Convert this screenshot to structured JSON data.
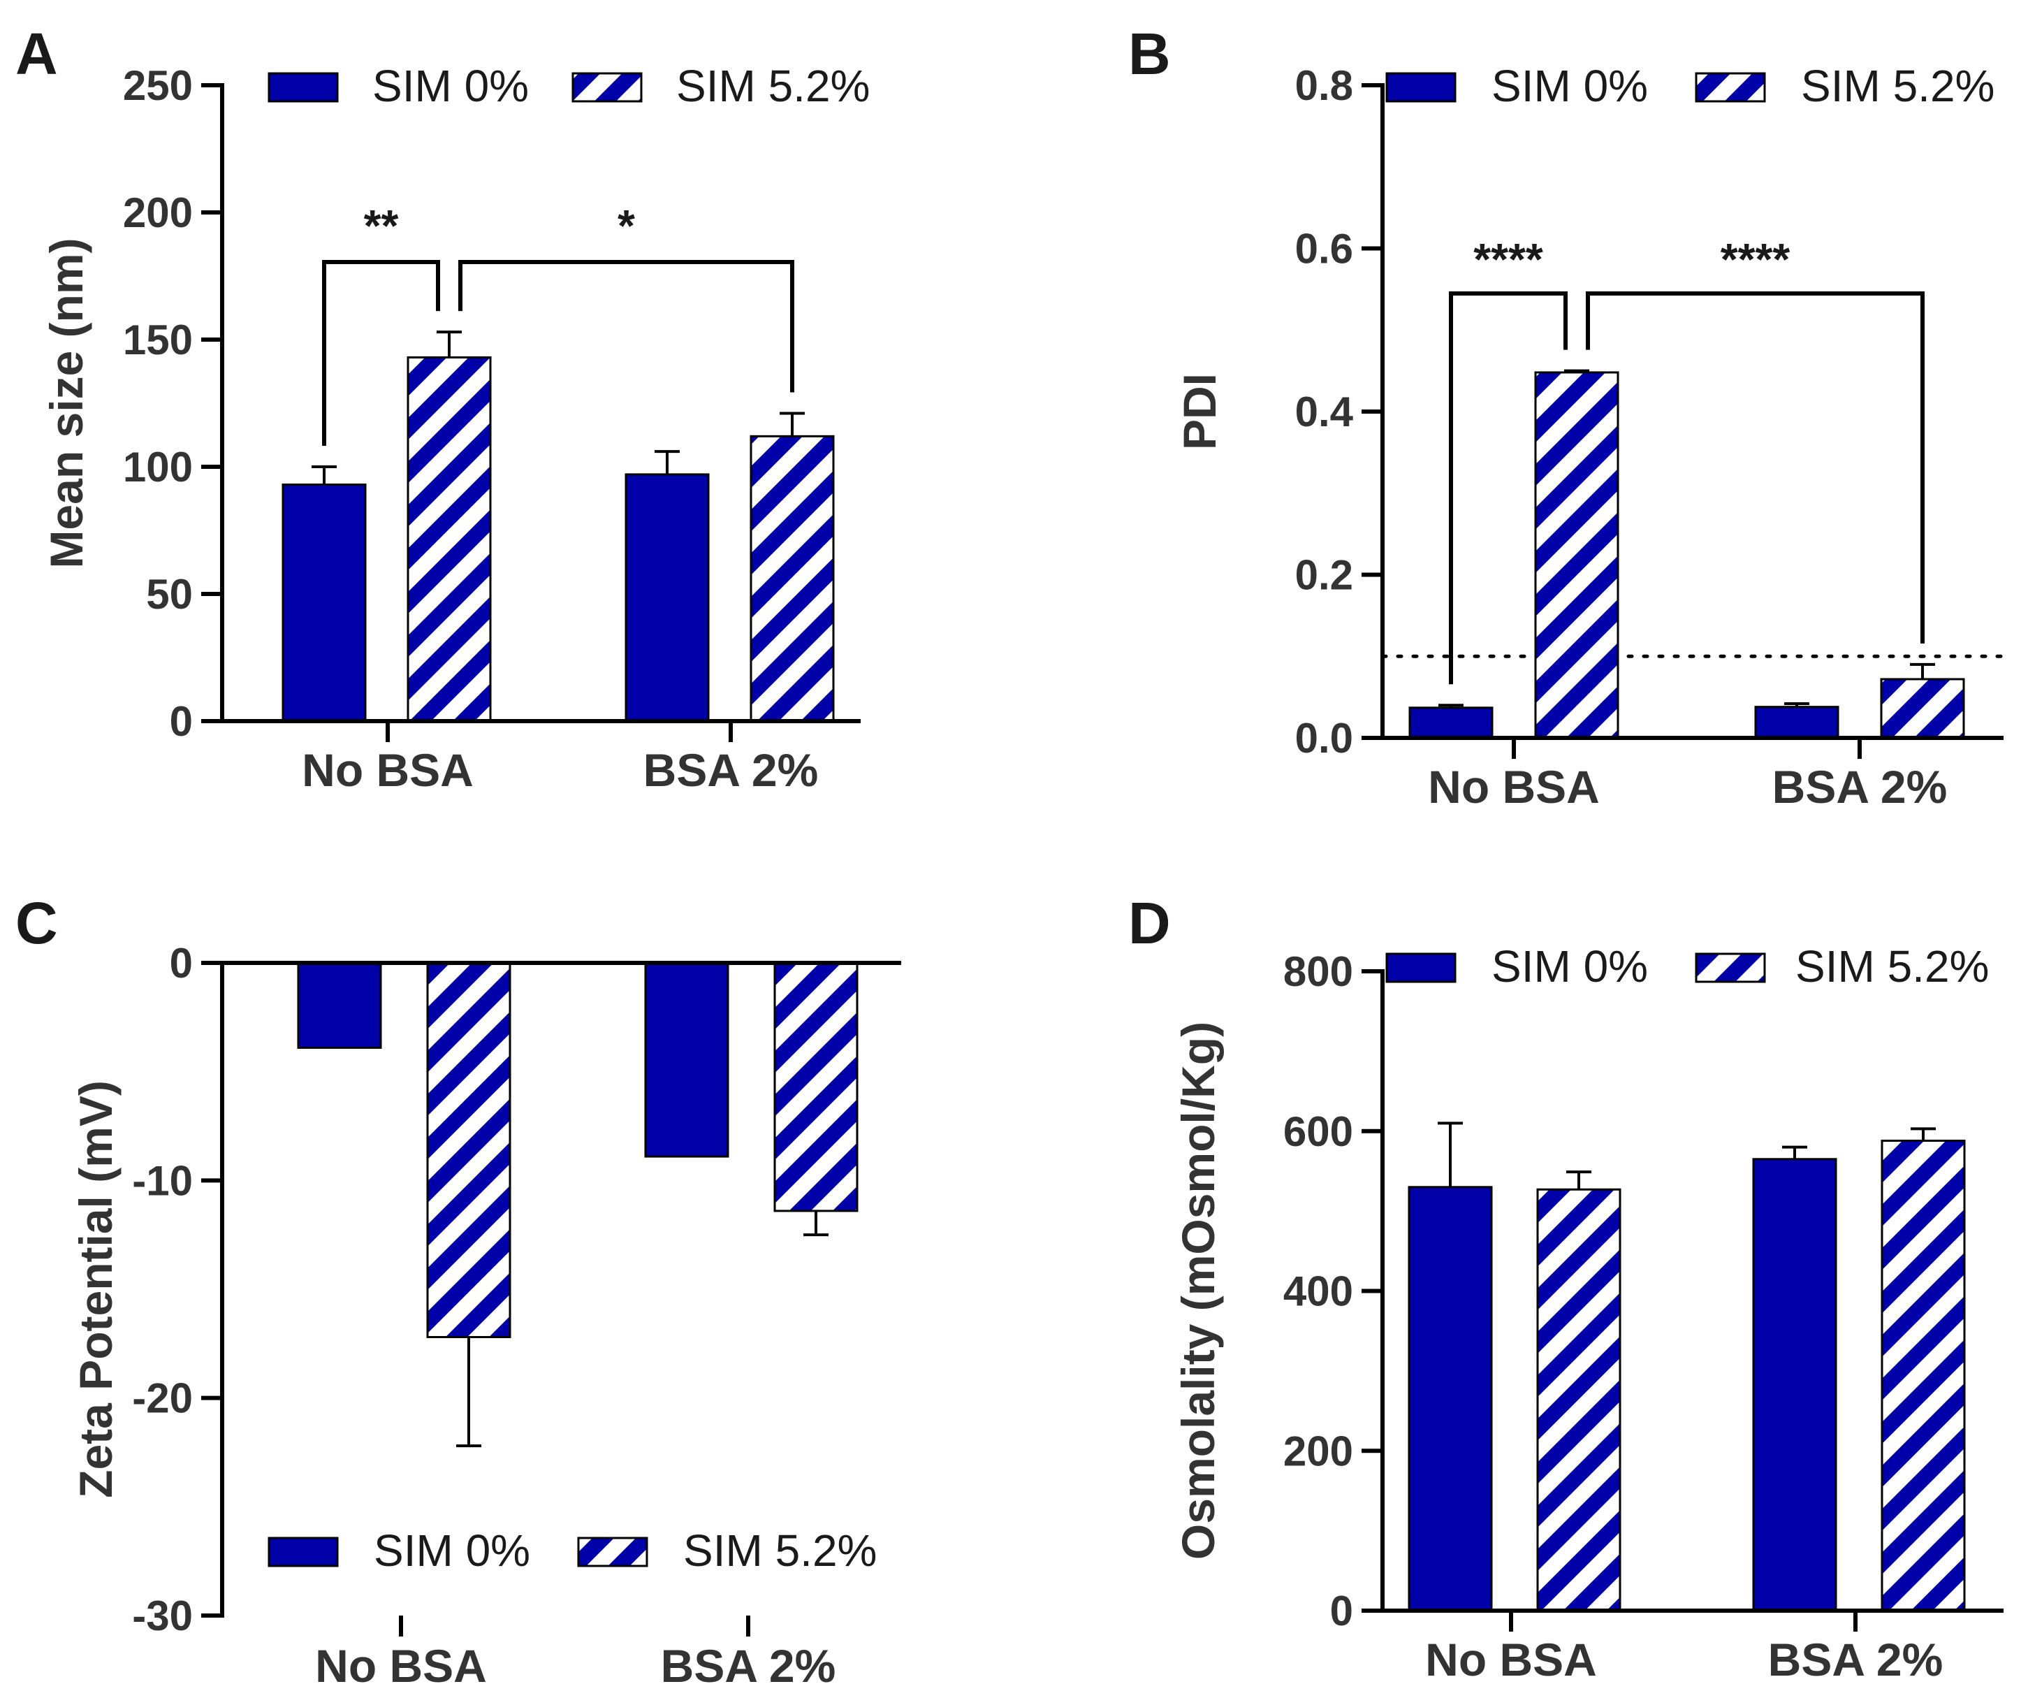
{
  "colors": {
    "bar": "#0000a8",
    "axis": "#000000",
    "stripe_bg": "#ffffff"
  },
  "chart_data": [
    {
      "panel": "A",
      "type": "bar",
      "categories": [
        "No BSA",
        "BSA 2%"
      ],
      "series": [
        {
          "name": "SIM 0%",
          "pattern": "solid",
          "values": [
            93,
            97
          ],
          "errors": [
            7,
            9
          ]
        },
        {
          "name": "SIM 5.2%",
          "pattern": "striped",
          "values": [
            143,
            112
          ],
          "errors": [
            10,
            9
          ]
        }
      ],
      "xlabel": "",
      "ylabel": "Mean size (nm)",
      "ylim": [
        0,
        250
      ],
      "yticks": [
        0,
        50,
        100,
        150,
        200,
        250
      ],
      "ytick_labels": [
        "0",
        "50",
        "100",
        "150",
        "200",
        "250"
      ],
      "legend_position": "top",
      "significance": [
        {
          "from": [
            0,
            0
          ],
          "to": [
            0,
            1
          ],
          "label": "**"
        },
        {
          "from": [
            0,
            1
          ],
          "to": [
            1,
            1
          ],
          "label": "*"
        }
      ]
    },
    {
      "panel": "B",
      "type": "bar",
      "categories": [
        "No BSA",
        "BSA 2%"
      ],
      "series": [
        {
          "name": "SIM 0%",
          "pattern": "solid",
          "values": [
            0.037,
            0.038
          ],
          "errors": [
            0.003,
            0.004
          ]
        },
        {
          "name": "SIM 5.2%",
          "pattern": "striped",
          "values": [
            0.448,
            0.072
          ],
          "errors": [
            0.002,
            0.018
          ]
        }
      ],
      "xlabel": "",
      "ylabel": "PDI",
      "ylim": [
        0,
        0.8
      ],
      "yticks": [
        0,
        0.2,
        0.4,
        0.6,
        0.8
      ],
      "ytick_labels": [
        "0.0",
        "0.2",
        "0.4",
        "0.6",
        "0.8"
      ],
      "reference_line": 0.1,
      "legend_position": "top",
      "significance": [
        {
          "from": [
            0,
            0
          ],
          "to": [
            0,
            1
          ],
          "label": "****"
        },
        {
          "from": [
            0,
            1
          ],
          "to": [
            1,
            1
          ],
          "label": "****"
        }
      ]
    },
    {
      "panel": "C",
      "type": "bar",
      "categories": [
        "No BSA",
        "BSA 2%"
      ],
      "series": [
        {
          "name": "SIM 0%",
          "pattern": "solid",
          "values": [
            -3.9,
            -8.9
          ],
          "errors": [
            0,
            0
          ]
        },
        {
          "name": "SIM 5.2%",
          "pattern": "striped",
          "values": [
            -17.2,
            -11.4
          ],
          "errors": [
            5.0,
            1.1
          ]
        }
      ],
      "xlabel": "",
      "ylabel": "Zeta Potential (mV)",
      "ylim": [
        -30,
        0
      ],
      "yticks": [
        -30,
        -20,
        -10,
        0
      ],
      "ytick_labels": [
        "-30",
        "-20",
        "-10",
        "0"
      ],
      "legend_position": "bottom",
      "significance": []
    },
    {
      "panel": "D",
      "type": "bar",
      "categories": [
        "No BSA",
        "BSA 2%"
      ],
      "series": [
        {
          "name": "SIM 0%",
          "pattern": "solid",
          "values": [
            530,
            565
          ],
          "errors": [
            80,
            15
          ]
        },
        {
          "name": "SIM 5.2%",
          "pattern": "striped",
          "values": [
            527,
            588
          ],
          "errors": [
            22,
            15
          ]
        }
      ],
      "xlabel": "",
      "ylabel": "Osmolality (mOsmol/Kg)",
      "ylim": [
        0,
        800
      ],
      "yticks": [
        0,
        200,
        400,
        600,
        800
      ],
      "ytick_labels": [
        "0",
        "200",
        "400",
        "600",
        "800"
      ],
      "legend_position": "top",
      "significance": []
    }
  ]
}
